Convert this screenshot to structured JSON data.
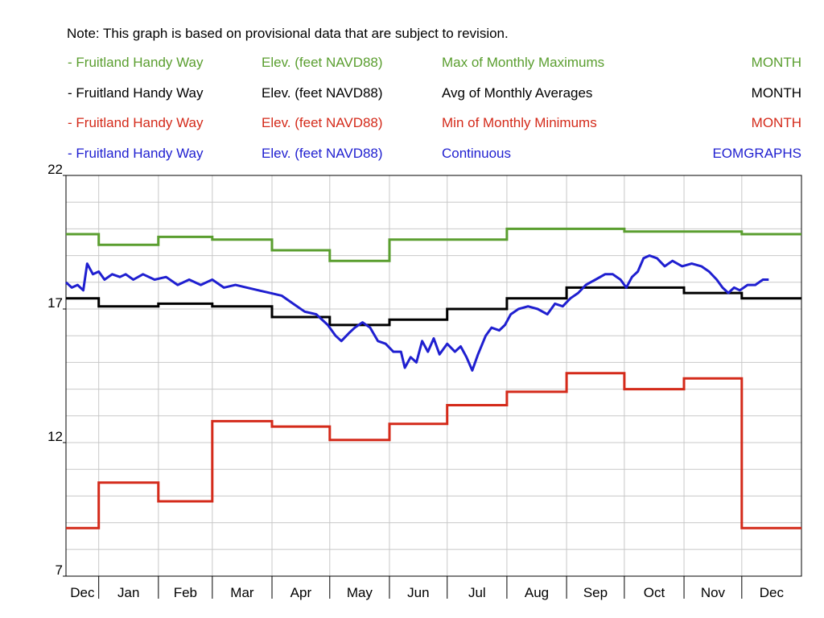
{
  "note": "Note: This graph is based on provisional data that are subject to revision.",
  "legend": [
    {
      "marker": "-",
      "site": "Fruitland Handy Way",
      "parameter": "Elev. (feet NAVD88)",
      "statistic": "Max of Monthly Maximums",
      "period": "MONTH",
      "color": "#5a9e2f"
    },
    {
      "marker": "-",
      "site": "Fruitland Handy Way",
      "parameter": "Elev. (feet NAVD88)",
      "statistic": "Avg of Monthly Averages",
      "period": "MONTH",
      "color": "#000000"
    },
    {
      "marker": "-",
      "site": "Fruitland Handy Way",
      "parameter": "Elev. (feet NAVD88)",
      "statistic": "Min of Monthly Minimums",
      "period": "MONTH",
      "color": "#d42a1a"
    },
    {
      "marker": "-",
      "site": "Fruitland Handy Way",
      "parameter": "Elev. (feet NAVD88)",
      "statistic": "Continuous",
      "period": "EOMGRAPHS",
      "color": "#1f1fd0"
    }
  ],
  "chart_data": {
    "type": "line",
    "title": "",
    "xlabel": "",
    "ylabel": "",
    "ylim": [
      7,
      22
    ],
    "yticks": [
      7,
      12,
      17,
      22
    ],
    "y_minor_step": 1,
    "grid": true,
    "legend_position": "top",
    "months": [
      "Dec",
      "Jan",
      "Feb",
      "Mar",
      "Apr",
      "May",
      "Jun",
      "Jul",
      "Aug",
      "Sep",
      "Oct",
      "Nov",
      "Dec"
    ],
    "month_lengths": [
      31,
      31,
      28,
      31,
      30,
      31,
      30,
      31,
      31,
      30,
      31,
      30,
      31
    ],
    "step_series": [
      {
        "name": "Max of Monthly Maximums",
        "color": "#5a9e2f",
        "values": [
          19.8,
          19.4,
          19.7,
          19.6,
          19.2,
          18.8,
          19.6,
          19.6,
          20.0,
          20.0,
          19.9,
          19.9,
          19.8
        ]
      },
      {
        "name": "Avg of Monthly Averages",
        "color": "#000000",
        "values": [
          17.4,
          17.1,
          17.2,
          17.1,
          16.7,
          16.4,
          16.6,
          17.0,
          17.4,
          17.8,
          17.8,
          17.6,
          17.4
        ]
      },
      {
        "name": "Min of Monthly Minimums",
        "color": "#d42a1a",
        "values": [
          8.8,
          10.5,
          9.8,
          12.8,
          12.6,
          12.1,
          12.7,
          13.4,
          13.9,
          14.6,
          14.0,
          14.4,
          8.8
        ]
      }
    ],
    "continuous": {
      "name": "Continuous",
      "color": "#1f1fd0",
      "points": [
        [
          0,
          18.0
        ],
        [
          3,
          17.8
        ],
        [
          6,
          17.9
        ],
        [
          9,
          17.7
        ],
        [
          11,
          18.7
        ],
        [
          14,
          18.3
        ],
        [
          17,
          18.4
        ],
        [
          20,
          18.1
        ],
        [
          24,
          18.3
        ],
        [
          28,
          18.2
        ],
        [
          31,
          18.3
        ],
        [
          35,
          18.1
        ],
        [
          40,
          18.3
        ],
        [
          46,
          18.1
        ],
        [
          52,
          18.2
        ],
        [
          58,
          17.9
        ],
        [
          64,
          18.1
        ],
        [
          70,
          17.9
        ],
        [
          76,
          18.1
        ],
        [
          82,
          17.8
        ],
        [
          88,
          17.9
        ],
        [
          94,
          17.8
        ],
        [
          100,
          17.7
        ],
        [
          106,
          17.6
        ],
        [
          112,
          17.5
        ],
        [
          118,
          17.2
        ],
        [
          124,
          16.9
        ],
        [
          130,
          16.8
        ],
        [
          136,
          16.4
        ],
        [
          140,
          16.0
        ],
        [
          143,
          15.8
        ],
        [
          147,
          16.1
        ],
        [
          150,
          16.3
        ],
        [
          154,
          16.5
        ],
        [
          158,
          16.3
        ],
        [
          162,
          15.8
        ],
        [
          166,
          15.7
        ],
        [
          170,
          15.4
        ],
        [
          174,
          15.4
        ],
        [
          176,
          14.8
        ],
        [
          179,
          15.2
        ],
        [
          182,
          15.0
        ],
        [
          185,
          15.8
        ],
        [
          188,
          15.4
        ],
        [
          191,
          15.9
        ],
        [
          194,
          15.3
        ],
        [
          198,
          15.7
        ],
        [
          202,
          15.4
        ],
        [
          205,
          15.6
        ],
        [
          208,
          15.2
        ],
        [
          211,
          14.7
        ],
        [
          214,
          15.3
        ],
        [
          218,
          16.0
        ],
        [
          221,
          16.3
        ],
        [
          225,
          16.2
        ],
        [
          228,
          16.4
        ],
        [
          231,
          16.8
        ],
        [
          235,
          17.0
        ],
        [
          240,
          17.1
        ],
        [
          245,
          17.0
        ],
        [
          250,
          16.8
        ],
        [
          254,
          17.2
        ],
        [
          258,
          17.1
        ],
        [
          262,
          17.4
        ],
        [
          266,
          17.6
        ],
        [
          270,
          17.9
        ],
        [
          275,
          18.1
        ],
        [
          280,
          18.3
        ],
        [
          284,
          18.3
        ],
        [
          288,
          18.1
        ],
        [
          291,
          17.8
        ],
        [
          294,
          18.2
        ],
        [
          297,
          18.4
        ],
        [
          300,
          18.9
        ],
        [
          303,
          19.0
        ],
        [
          307,
          18.9
        ],
        [
          311,
          18.6
        ],
        [
          315,
          18.8
        ],
        [
          320,
          18.6
        ],
        [
          325,
          18.7
        ],
        [
          330,
          18.6
        ],
        [
          334,
          18.4
        ],
        [
          338,
          18.1
        ],
        [
          341,
          17.8
        ],
        [
          344,
          17.6
        ],
        [
          347,
          17.8
        ],
        [
          350,
          17.7
        ],
        [
          354,
          17.9
        ],
        [
          358,
          17.9
        ],
        [
          362,
          18.1
        ],
        [
          365,
          18.1
        ]
      ]
    }
  }
}
